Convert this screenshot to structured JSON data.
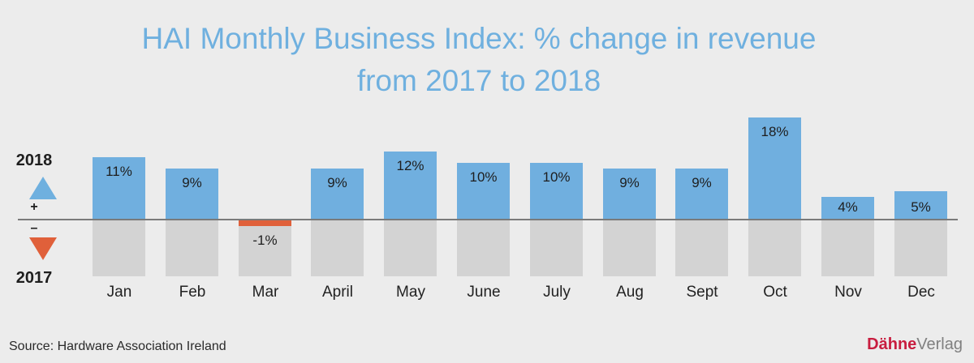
{
  "title": {
    "line1": "HAI Monthly Business Index: % change in revenue",
    "line2": "from 2017 to 2018"
  },
  "legend": {
    "top_year": "2018",
    "bottom_year": "2017",
    "plus": "+",
    "minus": "–",
    "up_color": "#6fb0df",
    "down_color": "#e0603a"
  },
  "months": [
    {
      "label": "Jan",
      "value": 11,
      "text": "11%"
    },
    {
      "label": "Feb",
      "value": 9,
      "text": "9%"
    },
    {
      "label": "Mar",
      "value": -1,
      "text": "-1%"
    },
    {
      "label": "April",
      "value": 9,
      "text": "9%"
    },
    {
      "label": "May",
      "value": 12,
      "text": "12%"
    },
    {
      "label": "June",
      "value": 10,
      "text": "10%"
    },
    {
      "label": "July",
      "value": 10,
      "text": "10%"
    },
    {
      "label": "Aug",
      "value": 9,
      "text": "9%"
    },
    {
      "label": "Sept",
      "value": 9,
      "text": "9%"
    },
    {
      "label": "Oct",
      "value": 18,
      "text": "18%"
    },
    {
      "label": "Nov",
      "value": 4,
      "text": "4%"
    },
    {
      "label": "Dec",
      "value": 5,
      "text": "5%"
    }
  ],
  "footer": {
    "source": "Source: Hardware Association Ireland",
    "brand_bold": "Dähne",
    "brand_light": "Verlag"
  },
  "colors": {
    "positive": "#70afdf",
    "negative": "#e0603a",
    "baseline_area": "#d3d3d3",
    "title": "#6fb0df"
  },
  "chart_data": {
    "type": "bar",
    "title": "HAI Monthly Business Index: % change in revenue from 2017 to 2018",
    "categories": [
      "Jan",
      "Feb",
      "Mar",
      "April",
      "May",
      "June",
      "July",
      "Aug",
      "Sept",
      "Oct",
      "Nov",
      "Dec"
    ],
    "values": [
      11,
      9,
      -1,
      9,
      12,
      10,
      10,
      9,
      9,
      18,
      4,
      5
    ],
    "data_labels": [
      "11%",
      "9%",
      "-1%",
      "9%",
      "12%",
      "10%",
      "10%",
      "9%",
      "9%",
      "18%",
      "4%",
      "5%"
    ],
    "xlabel": "",
    "ylabel": "% change in revenue",
    "legend": [
      "2018 (+)",
      "2017 (–)"
    ],
    "grid": false,
    "source": "Source: Hardware Association Ireland"
  }
}
